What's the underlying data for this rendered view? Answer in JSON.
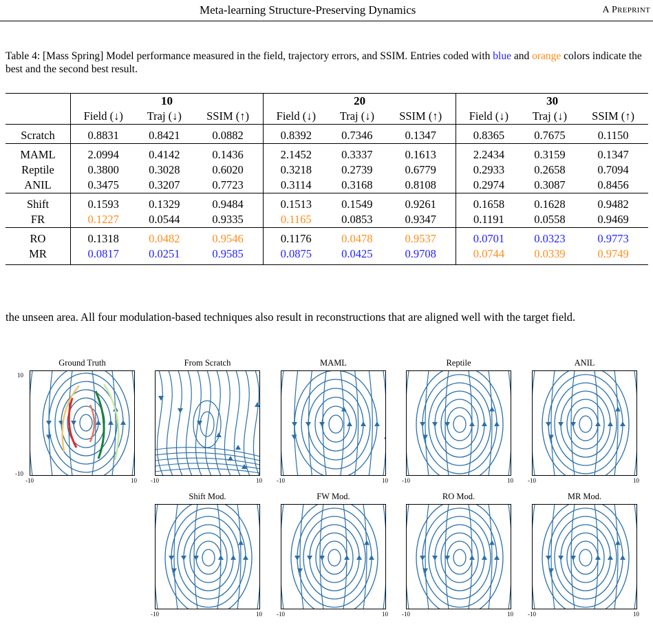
{
  "header": {
    "title": "Meta-learning Structure-Preserving Dynamics",
    "tag_first": "A P",
    "tag_rest": "REPRINT"
  },
  "caption": {
    "prefix": "Table 4: [Mass Spring] Model performance measured in the field, trajectory errors, and SSIM. Entries coded with ",
    "blue_word": "blue",
    "middle": " and ",
    "orange_word": "orange",
    "suffix": " colors indicate the best and the second best result."
  },
  "table": {
    "groups": [
      "10",
      "20",
      "30"
    ],
    "columns": [
      "Field (↓)",
      "Traj (↓)",
      "SSIM (↑)"
    ],
    "colors": {
      "blue": "#1f1fff",
      "orange": "#ff8c1a"
    },
    "sections": [
      {
        "rows": [
          {
            "label": "Scratch",
            "cells": [
              {
                "v": "0.8831"
              },
              {
                "v": "0.8421"
              },
              {
                "v": "0.0882"
              },
              {
                "v": "0.8392"
              },
              {
                "v": "0.7346"
              },
              {
                "v": "0.1347"
              },
              {
                "v": "0.8365"
              },
              {
                "v": "0.7675"
              },
              {
                "v": "0.1150"
              }
            ]
          }
        ]
      },
      {
        "rows": [
          {
            "label": "MAML",
            "cells": [
              {
                "v": "2.0994"
              },
              {
                "v": "0.4142"
              },
              {
                "v": "0.1436"
              },
              {
                "v": "2.1452"
              },
              {
                "v": "0.3337"
              },
              {
                "v": "0.1613"
              },
              {
                "v": "2.2434"
              },
              {
                "v": "0.3159"
              },
              {
                "v": "0.1347"
              }
            ]
          },
          {
            "label": "Reptile",
            "cells": [
              {
                "v": "0.3800"
              },
              {
                "v": "0.3028"
              },
              {
                "v": "0.6020"
              },
              {
                "v": "0.3218"
              },
              {
                "v": "0.2739"
              },
              {
                "v": "0.6779"
              },
              {
                "v": "0.2933"
              },
              {
                "v": "0.2658"
              },
              {
                "v": "0.7094"
              }
            ]
          },
          {
            "label": "ANIL",
            "cells": [
              {
                "v": "0.3475"
              },
              {
                "v": "0.3207"
              },
              {
                "v": "0.7723"
              },
              {
                "v": "0.3114"
              },
              {
                "v": "0.3168"
              },
              {
                "v": "0.8108"
              },
              {
                "v": "0.2974"
              },
              {
                "v": "0.3087"
              },
              {
                "v": "0.8456"
              }
            ]
          }
        ]
      },
      {
        "rows": [
          {
            "label": "Shift",
            "cells": [
              {
                "v": "0.1593"
              },
              {
                "v": "0.1329"
              },
              {
                "v": "0.9484"
              },
              {
                "v": "0.1513"
              },
              {
                "v": "0.1549"
              },
              {
                "v": "0.9261"
              },
              {
                "v": "0.1658"
              },
              {
                "v": "0.1628"
              },
              {
                "v": "0.9482"
              }
            ]
          },
          {
            "label": "FR",
            "cells": [
              {
                "v": "0.1227",
                "c": "orange"
              },
              {
                "v": "0.0544"
              },
              {
                "v": "0.9335"
              },
              {
                "v": "0.1165",
                "c": "orange"
              },
              {
                "v": "0.0853"
              },
              {
                "v": "0.9347"
              },
              {
                "v": "0.1191"
              },
              {
                "v": "0.0558"
              },
              {
                "v": "0.9469"
              }
            ]
          }
        ]
      },
      {
        "rows": [
          {
            "label": "RO",
            "cells": [
              {
                "v": "0.1318"
              },
              {
                "v": "0.0482",
                "c": "orange"
              },
              {
                "v": "0.9546",
                "c": "orange"
              },
              {
                "v": "0.1176"
              },
              {
                "v": "0.0478",
                "c": "orange"
              },
              {
                "v": "0.9537",
                "c": "orange"
              },
              {
                "v": "0.0701",
                "c": "blue"
              },
              {
                "v": "0.0323",
                "c": "blue"
              },
              {
                "v": "0.9773",
                "c": "blue"
              }
            ]
          },
          {
            "label": "MR",
            "cells": [
              {
                "v": "0.0817",
                "c": "blue"
              },
              {
                "v": "0.0251",
                "c": "blue"
              },
              {
                "v": "0.9585",
                "c": "blue"
              },
              {
                "v": "0.0875",
                "c": "blue"
              },
              {
                "v": "0.0425",
                "c": "blue"
              },
              {
                "v": "0.9708",
                "c": "blue"
              },
              {
                "v": "0.0744",
                "c": "orange"
              },
              {
                "v": "0.0339",
                "c": "orange"
              },
              {
                "v": "0.9749",
                "c": "orange"
              }
            ]
          }
        ]
      }
    ]
  },
  "body_text": "the unseen area. All four modulation-based techniques also result in reconstructions that are aligned well with the target field.",
  "figure": {
    "stream_color": "#2b6fa8",
    "axis_ticks": {
      "x_min": "-10",
      "x_max": "10",
      "y_min": "-10",
      "y_max": "10"
    },
    "panels": [
      {
        "title": "Ground Truth",
        "kind": "gt"
      },
      {
        "title": "From Scratch",
        "kind": "scratch"
      },
      {
        "title": "MAML",
        "kind": "wide"
      },
      {
        "title": "Reptile",
        "kind": "orbit"
      },
      {
        "title": "ANIL",
        "kind": "orbit"
      },
      {
        "title": "Shift Mod.",
        "kind": "orbit"
      },
      {
        "title": "FW Mod.",
        "kind": "orbit"
      },
      {
        "title": "RO Mod.",
        "kind": "orbit"
      },
      {
        "title": "MR Mod.",
        "kind": "orbit"
      }
    ]
  }
}
